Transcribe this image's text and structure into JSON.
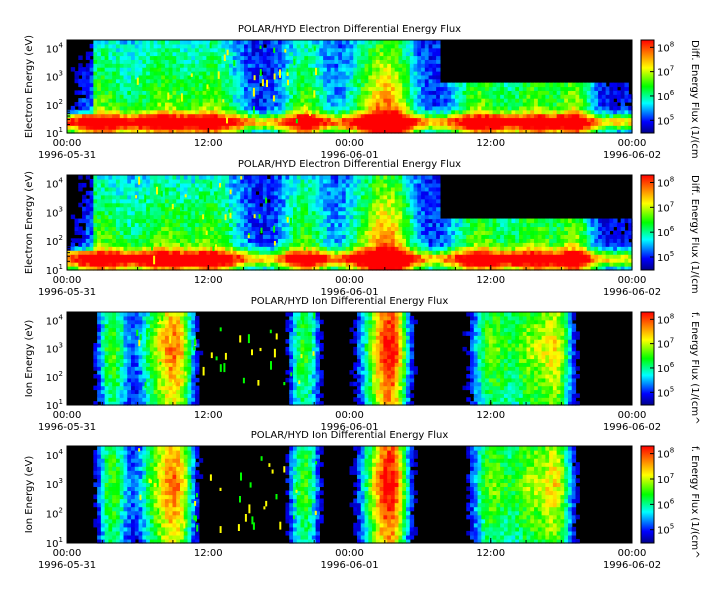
{
  "figure": {
    "panels": [
      {
        "title": "POLAR/HYD  Electron Differential Energy Flux",
        "ylabel": "Electron Energy (eV)",
        "cbar_label": "Diff. Energy Flux (1/(cm"
      },
      {
        "title": "POLAR/HYD  Electron Differential Energy Flux",
        "ylabel": "Electron Energy (eV)",
        "cbar_label": "Diff. Energy Flux (1/(cm"
      },
      {
        "title": "POLAR/HYD  Ion Differential Energy Flux",
        "ylabel": "Ion Energy (eV)",
        "cbar_label": "f. Energy Flux (1/(cm^"
      },
      {
        "title": "POLAR/HYD  Ion Differential Energy Flux",
        "ylabel": "Ion Energy (eV)",
        "cbar_label": "f. Energy Flux (1/(cm^"
      }
    ],
    "x_time_labels": [
      "00:00",
      "12:00",
      "00:00",
      "12:00",
      "00:00"
    ],
    "x_date_labels": [
      "1996-05-31",
      "",
      "1996-06-01",
      "",
      "1996-06-02"
    ],
    "y_tick_labels": [
      "10^1",
      "10^2",
      "10^3",
      "10^4"
    ],
    "cbar_tick_labels": [
      "10^5",
      "10^6",
      "10^7",
      "10^8"
    ],
    "colors": {
      "background": "#000000",
      "low": "#0000ff",
      "mid": "#00ff00",
      "high": "#ff0000"
    }
  },
  "chart_data": [
    {
      "type": "heatmap",
      "title": "POLAR/HYD  Electron Differential Energy Flux",
      "ylabel": "Electron Energy (eV)",
      "x_range": [
        "1996-05-31 00:00",
        "1996-06-02 00:00"
      ],
      "y_range": [
        10,
        20000
      ],
      "y_scale": "log",
      "colorbar_label": "Diff. Energy Flux (1/(cm",
      "colorbar_scale": "log",
      "colorbar_range": [
        30000,
        200000000
      ]
    },
    {
      "type": "heatmap",
      "title": "POLAR/HYD  Electron Differential Energy Flux",
      "ylabel": "Electron Energy (eV)",
      "x_range": [
        "1996-05-31 00:00",
        "1996-06-02 00:00"
      ],
      "y_range": [
        10,
        20000
      ],
      "y_scale": "log",
      "colorbar_label": "Diff. Energy Flux (1/(cm",
      "colorbar_scale": "log",
      "colorbar_range": [
        30000,
        200000000
      ]
    },
    {
      "type": "heatmap",
      "title": "POLAR/HYD  Ion Differential Energy Flux",
      "ylabel": "Ion Energy (eV)",
      "x_range": [
        "1996-05-31 00:00",
        "1996-06-02 00:00"
      ],
      "y_range": [
        10,
        20000
      ],
      "y_scale": "log",
      "colorbar_label": "f. Energy Flux (1/(cm^",
      "colorbar_scale": "log",
      "colorbar_range": [
        30000,
        200000000
      ]
    },
    {
      "type": "heatmap",
      "title": "POLAR/HYD  Ion Differential Energy Flux",
      "ylabel": "Ion Energy (eV)",
      "x_range": [
        "1996-05-31 00:00",
        "1996-06-02 00:00"
      ],
      "y_range": [
        10,
        20000
      ],
      "y_scale": "log",
      "colorbar_label": "f. Energy Flux (1/(cm^",
      "colorbar_scale": "log",
      "colorbar_range": [
        30000,
        200000000
      ]
    }
  ]
}
